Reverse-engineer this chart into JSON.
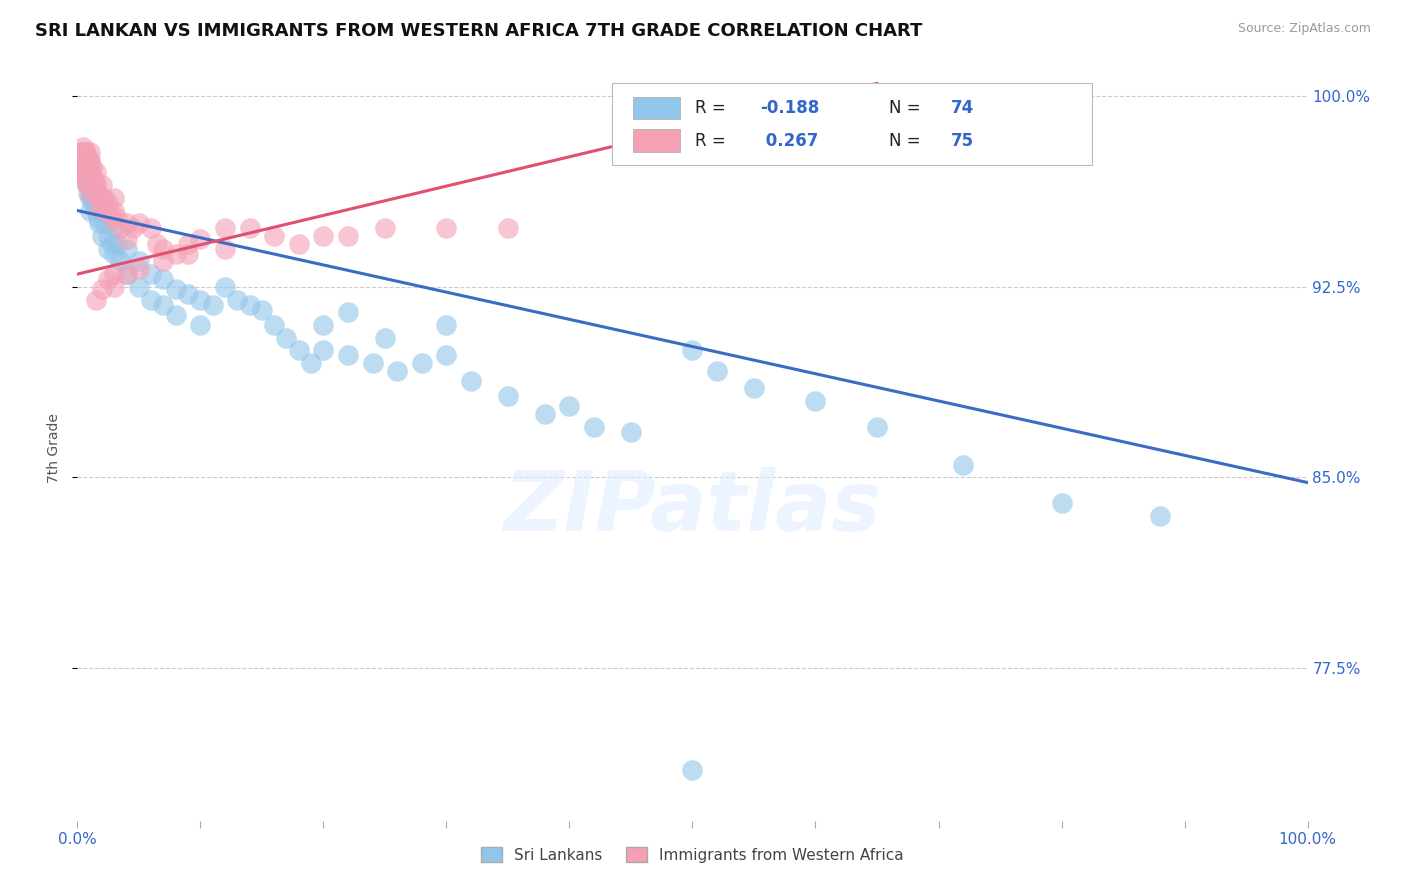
{
  "title": "SRI LANKAN VS IMMIGRANTS FROM WESTERN AFRICA 7TH GRADE CORRELATION CHART",
  "source": "Source: ZipAtlas.com",
  "ylabel": "7th Grade",
  "ytick_labels": [
    "100.0%",
    "92.5%",
    "85.0%",
    "77.5%"
  ],
  "ytick_values": [
    1.0,
    0.925,
    0.85,
    0.775
  ],
  "legend1_label": "Sri Lankans",
  "legend2_label": "Immigrants from Western Africa",
  "r_blue": -0.188,
  "n_blue": 74,
  "r_pink": 0.267,
  "n_pink": 75,
  "blue_color": "#92C5EA",
  "pink_color": "#F4A0B5",
  "blue_line_color": "#3B6CC5",
  "pink_line_color": "#E05070",
  "watermark": "ZIPatlas",
  "blue_points_x": [
    0.005,
    0.007,
    0.008,
    0.009,
    0.01,
    0.01,
    0.01,
    0.01,
    0.01,
    0.012,
    0.013,
    0.015,
    0.015,
    0.017,
    0.018,
    0.02,
    0.02,
    0.02,
    0.022,
    0.025,
    0.025,
    0.028,
    0.03,
    0.03,
    0.032,
    0.035,
    0.04,
    0.04,
    0.05,
    0.05,
    0.06,
    0.06,
    0.07,
    0.07,
    0.08,
    0.08,
    0.09,
    0.1,
    0.1,
    0.11,
    0.12,
    0.13,
    0.14,
    0.15,
    0.16,
    0.17,
    0.18,
    0.19,
    0.2,
    0.2,
    0.22,
    0.22,
    0.24,
    0.25,
    0.26,
    0.28,
    0.3,
    0.3,
    0.32,
    0.35,
    0.38,
    0.4,
    0.42,
    0.45,
    0.5,
    0.52,
    0.55,
    0.6,
    0.65,
    0.72,
    0.8,
    0.88,
    0.5
  ],
  "blue_points_y": [
    0.97,
    0.968,
    0.965,
    0.962,
    0.975,
    0.97,
    0.965,
    0.96,
    0.955,
    0.96,
    0.958,
    0.963,
    0.955,
    0.952,
    0.95,
    0.96,
    0.955,
    0.945,
    0.95,
    0.945,
    0.94,
    0.942,
    0.948,
    0.938,
    0.942,
    0.935,
    0.94,
    0.93,
    0.935,
    0.925,
    0.93,
    0.92,
    0.928,
    0.918,
    0.924,
    0.914,
    0.922,
    0.92,
    0.91,
    0.918,
    0.925,
    0.92,
    0.918,
    0.916,
    0.91,
    0.905,
    0.9,
    0.895,
    0.91,
    0.9,
    0.915,
    0.898,
    0.895,
    0.905,
    0.892,
    0.895,
    0.91,
    0.898,
    0.888,
    0.882,
    0.875,
    0.878,
    0.87,
    0.868,
    0.9,
    0.892,
    0.885,
    0.88,
    0.87,
    0.855,
    0.84,
    0.835,
    0.735
  ],
  "pink_points_x": [
    0.003,
    0.003,
    0.003,
    0.004,
    0.004,
    0.004,
    0.005,
    0.005,
    0.005,
    0.005,
    0.006,
    0.006,
    0.007,
    0.007,
    0.007,
    0.007,
    0.008,
    0.008,
    0.008,
    0.009,
    0.009,
    0.01,
    0.01,
    0.01,
    0.01,
    0.01,
    0.012,
    0.012,
    0.013,
    0.014,
    0.015,
    0.015,
    0.015,
    0.018,
    0.018,
    0.02,
    0.02,
    0.022,
    0.024,
    0.025,
    0.028,
    0.03,
    0.03,
    0.032,
    0.035,
    0.04,
    0.04,
    0.045,
    0.05,
    0.06,
    0.065,
    0.07,
    0.08,
    0.09,
    0.1,
    0.12,
    0.14,
    0.16,
    0.18,
    0.2,
    0.22,
    0.25,
    0.3,
    0.35,
    0.03,
    0.05,
    0.07,
    0.09,
    0.12,
    0.015,
    0.02,
    0.025,
    0.03,
    0.04
  ],
  "pink_points_y": [
    0.978,
    0.975,
    0.972,
    0.978,
    0.975,
    0.972,
    0.98,
    0.976,
    0.972,
    0.968,
    0.978,
    0.974,
    0.978,
    0.974,
    0.97,
    0.966,
    0.976,
    0.972,
    0.968,
    0.974,
    0.97,
    0.978,
    0.974,
    0.97,
    0.966,
    0.962,
    0.972,
    0.968,
    0.968,
    0.965,
    0.97,
    0.966,
    0.962,
    0.96,
    0.956,
    0.965,
    0.958,
    0.96,
    0.955,
    0.958,
    0.952,
    0.96,
    0.955,
    0.952,
    0.948,
    0.95,
    0.944,
    0.948,
    0.95,
    0.948,
    0.942,
    0.94,
    0.938,
    0.942,
    0.944,
    0.948,
    0.948,
    0.945,
    0.942,
    0.945,
    0.945,
    0.948,
    0.948,
    0.948,
    0.93,
    0.932,
    0.935,
    0.938,
    0.94,
    0.92,
    0.924,
    0.928,
    0.925,
    0.93
  ],
  "xlim": [
    0.0,
    1.0
  ],
  "ylim": [
    0.715,
    1.008
  ],
  "blue_trend_x": [
    0.0,
    1.0
  ],
  "blue_trend_y": [
    0.955,
    0.848
  ],
  "pink_trend_x": [
    0.0,
    0.65
  ],
  "pink_trend_y": [
    0.93,
    1.005
  ]
}
